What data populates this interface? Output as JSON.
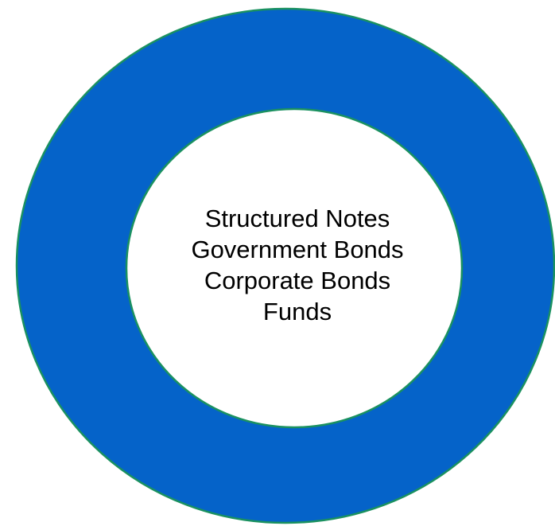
{
  "diagram": {
    "items": [
      "Structured Notes",
      "Government Bonds",
      "Corporate Bonds",
      "Funds"
    ],
    "colors": {
      "ring_fill": "#0563c9",
      "ring_outline": "#1a9160",
      "inner_fill": "#ffffff",
      "text": "#000000"
    }
  }
}
